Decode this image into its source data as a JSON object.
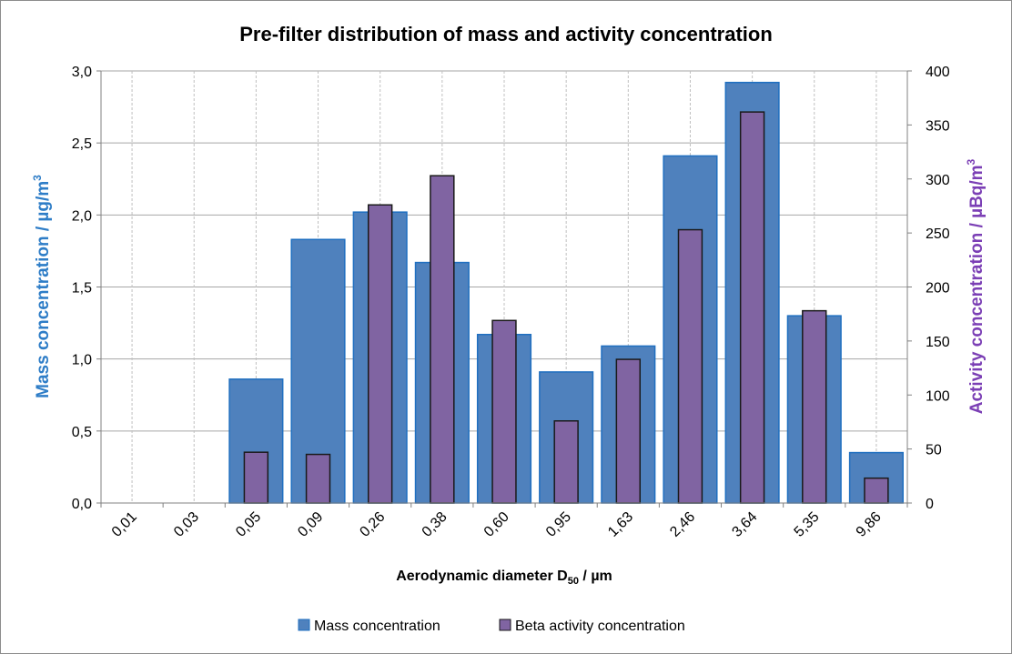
{
  "chart_data": {
    "type": "bar",
    "title": "Pre-filter distribution of mass and activity concentration",
    "xlabel": "Aerodynamic diameter D",
    "xlabel_sub": "50",
    "xlabel_unit": " / µm",
    "ylabel_left": "Mass concentration  / µg/m",
    "ylabel_left_sup": "3",
    "ylabel_right": "Activity concentration  / µBq/m",
    "ylabel_right_sup": "3",
    "categories": [
      "0,01",
      "0,03",
      "0,05",
      "0,09",
      "0,26",
      "0,38",
      "0,60",
      "0,95",
      "1,63",
      "2,46",
      "3,64",
      "5,35",
      "9,86"
    ],
    "left_axis": {
      "ylim": [
        0,
        3
      ],
      "ticks": [
        0,
        0.5,
        1,
        1.5,
        2,
        2.5,
        3
      ],
      "tick_labels": [
        "0,0",
        "0,5",
        "1,0",
        "1,5",
        "2,0",
        "2,5",
        "3,0"
      ]
    },
    "right_axis": {
      "ylim": [
        0,
        400
      ],
      "ticks": [
        0,
        50,
        100,
        150,
        200,
        250,
        300,
        350,
        400
      ],
      "tick_labels": [
        "0",
        "50",
        "100",
        "150",
        "200",
        "250",
        "300",
        "350",
        "400"
      ]
    },
    "grid": true,
    "legend_position": "bottom",
    "series": [
      {
        "name": "Mass concentration",
        "axis": "left",
        "color": "#4f81bd",
        "border": "#1f6fc0",
        "values": [
          0,
          0,
          0.86,
          1.83,
          2.02,
          1.67,
          1.17,
          0.91,
          1.09,
          2.41,
          2.92,
          1.3,
          0.35
        ]
      },
      {
        "name": "Beta activity concentration",
        "axis": "right",
        "color": "#8064a2",
        "border": "#1a1a1a",
        "values": [
          0,
          0,
          47,
          45,
          276,
          303,
          169,
          76,
          133,
          253,
          362,
          178,
          23
        ]
      }
    ],
    "colors": {
      "left_axis_label": "#2e7dc7",
      "right_axis_label": "#7b3fb5",
      "grid": "#bfbfbf",
      "axis": "#808080"
    }
  }
}
